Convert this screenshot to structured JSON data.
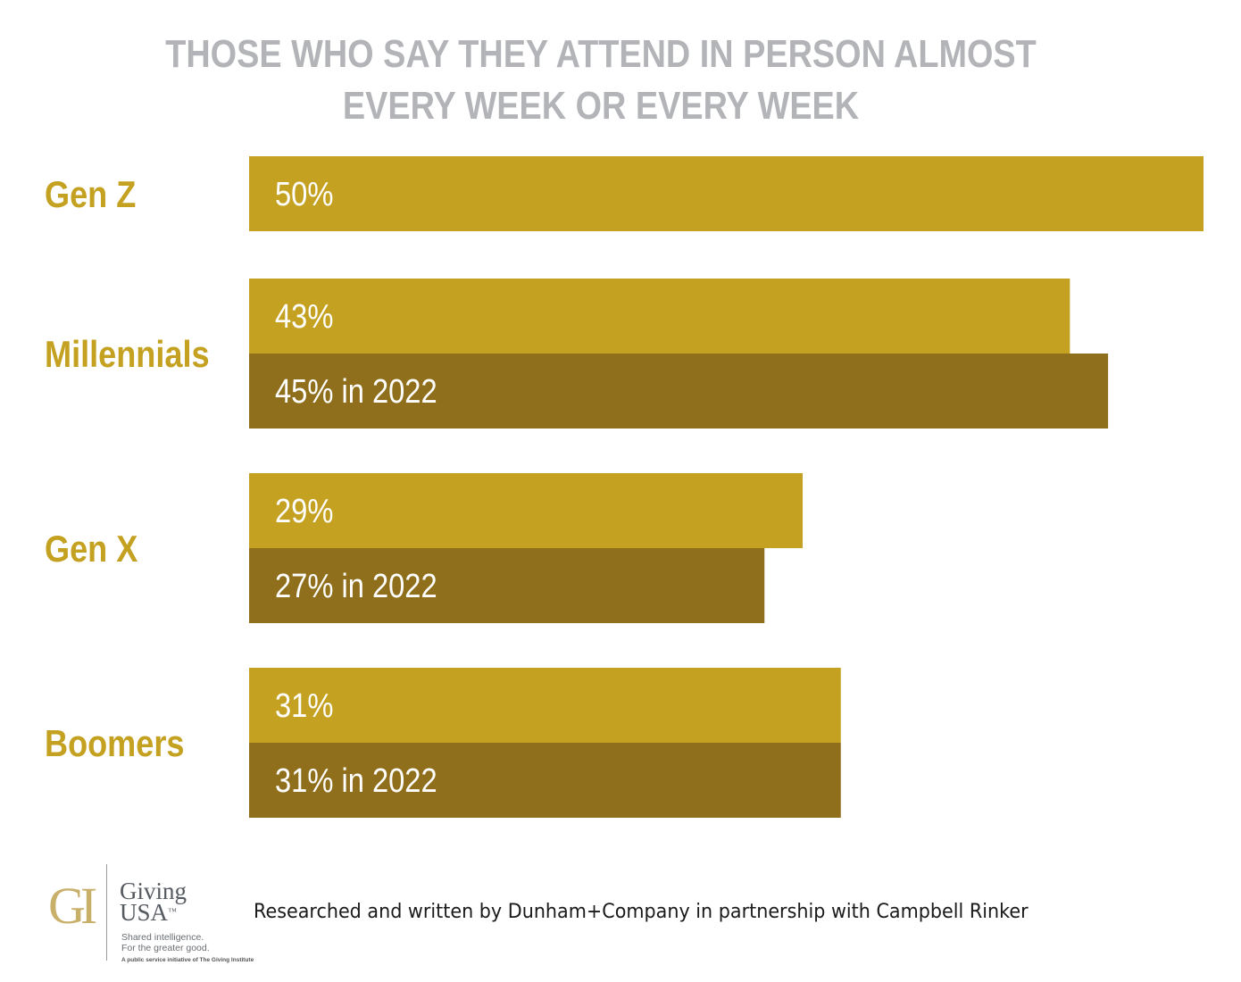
{
  "chart_data": {
    "type": "bar",
    "orientation": "horizontal",
    "title": "THOSE WHO SAY THEY ATTEND IN PERSON ALMOST EVERY WEEK OR EVERY WEEK",
    "title_lines": [
      "THOSE WHO SAY THEY ATTEND IN PERSON ALMOST",
      "EVERY WEEK OR EVERY WEEK"
    ],
    "categories": [
      "Gen Z",
      "Millennials",
      "Gen X",
      "Boomers"
    ],
    "series": [
      {
        "values": [
          50,
          43,
          29,
          31
        ],
        "labels": [
          "50%",
          "43%",
          "29%",
          "31%"
        ],
        "color": "#c4a120"
      },
      {
        "values": [
          null,
          45,
          27,
          31
        ],
        "labels": [
          "",
          "45% in 2022",
          "27% in 2022",
          "31% in 2022"
        ],
        "color": "#8f6f1c"
      }
    ],
    "xlim": [
      0,
      50
    ],
    "grid": false,
    "legend": "none",
    "category_label_color": "#c4a120",
    "title_color": "#b2b4b7"
  },
  "footer": {
    "logo_initials": "GI",
    "logo_name_line1": "Giving",
    "logo_name_line2": "USA",
    "logo_tm": "™",
    "tagline_line1": "Shared intelligence.",
    "tagline_line2": "For the greater good.",
    "initiative": "A public service initiative of The Giving Institute",
    "credit": "Researched and written by Dunham+Company in partnership with Campbell Rinker"
  }
}
